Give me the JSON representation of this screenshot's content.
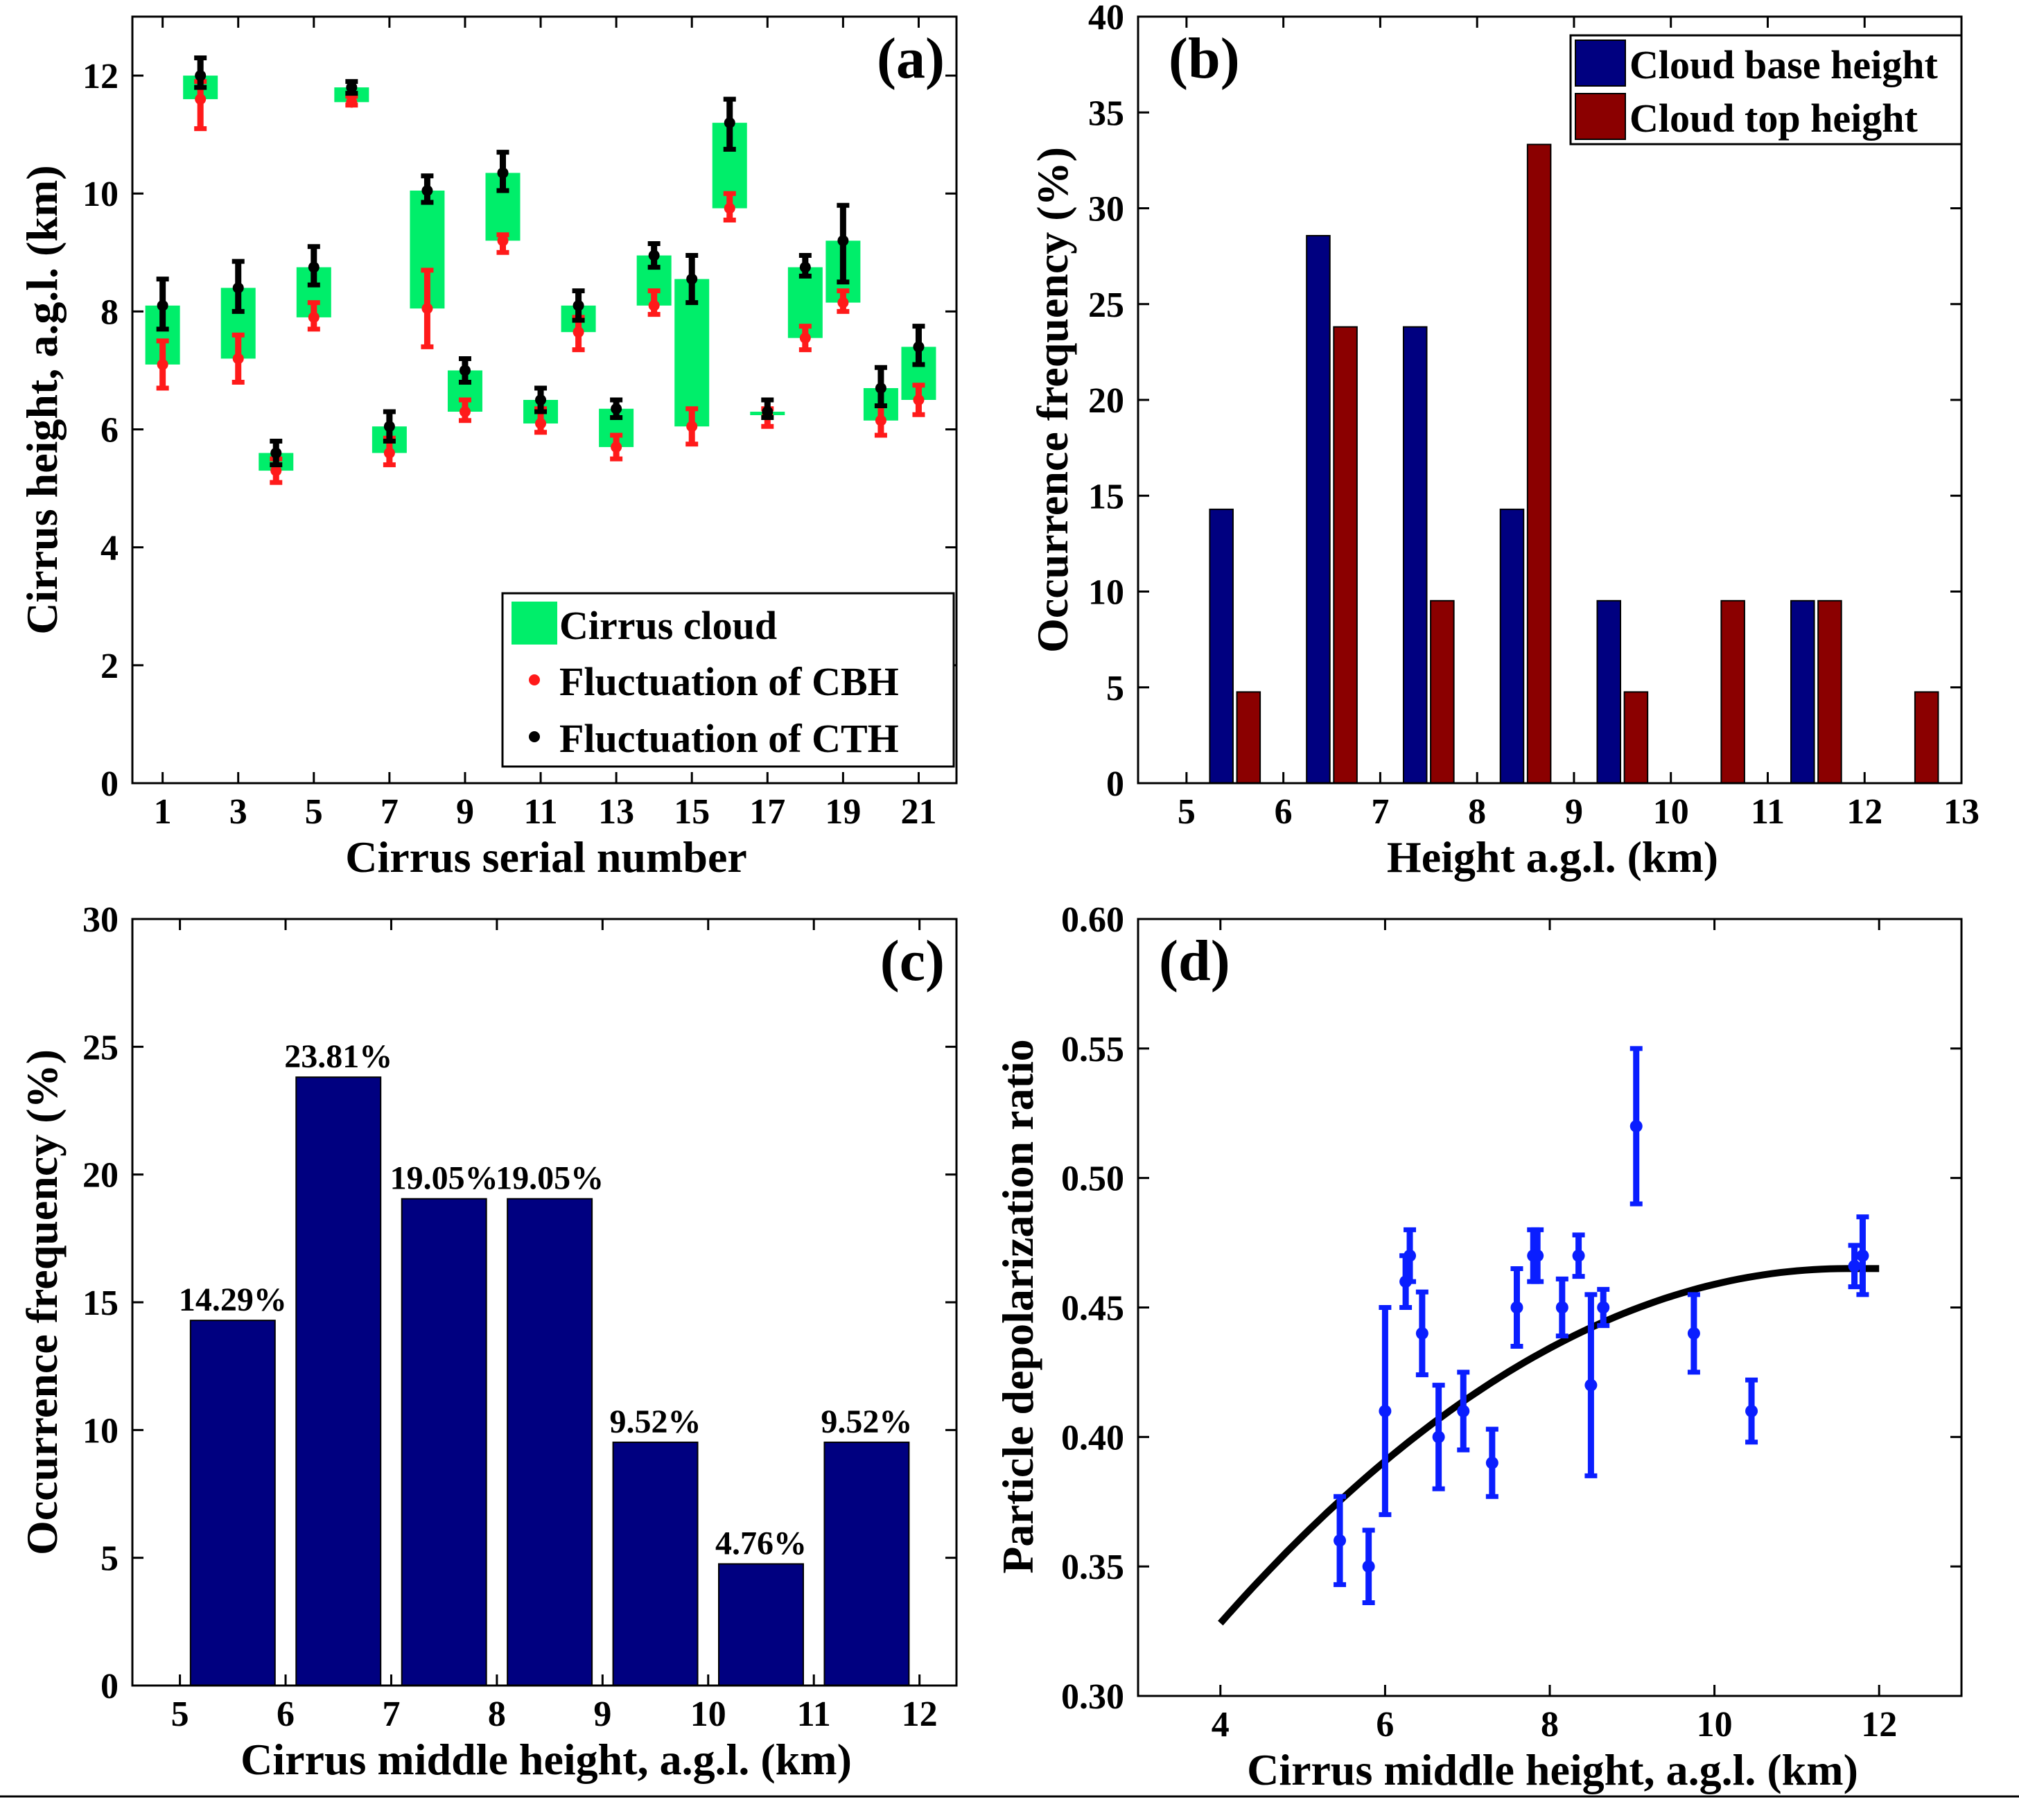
{
  "colors": {
    "cirrus": "#00ee6a",
    "cbh": "#ff1a1a",
    "cth": "#000000",
    "base": "#000080",
    "top": "#8b0000",
    "scatter": "#0a1eff",
    "fit": "#000000"
  },
  "chart_data": [
    {
      "panel": "(a)",
      "type": "range",
      "xlabel": "Cirrus serial number",
      "ylabel": "Cirrus height, a.g.l. (km)",
      "xlim": [
        0.2,
        22
      ],
      "ylim": [
        0,
        13
      ],
      "xticks": [
        1,
        3,
        5,
        7,
        9,
        11,
        13,
        15,
        17,
        19,
        21
      ],
      "yticks": [
        0,
        2,
        4,
        6,
        8,
        10,
        12
      ],
      "legend": [
        "Cirrus cloud",
        "Fluctuation of CBH",
        "Fluctuation of CTH"
      ],
      "legend_position": "bottom-right",
      "clouds": [
        {
          "n": 1,
          "cbh": 7.1,
          "cth": 8.1,
          "cbh_err": [
            6.7,
            7.5
          ],
          "cth_err": [
            7.7,
            8.55
          ]
        },
        {
          "n": 2,
          "cbh": 11.6,
          "cth": 12.0,
          "cbh_err": [
            11.1,
            11.9
          ],
          "cth_err": [
            11.8,
            12.3
          ]
        },
        {
          "n": 3,
          "cbh": 7.2,
          "cth": 8.4,
          "cbh_err": [
            6.8,
            7.6
          ],
          "cth_err": [
            8.0,
            8.85
          ]
        },
        {
          "n": 4,
          "cbh": 5.3,
          "cth": 5.6,
          "cbh_err": [
            5.1,
            5.5
          ],
          "cth_err": [
            5.4,
            5.8
          ]
        },
        {
          "n": 5,
          "cbh": 7.9,
          "cth": 8.75,
          "cbh_err": [
            7.7,
            8.15
          ],
          "cth_err": [
            8.45,
            9.1
          ]
        },
        {
          "n": 6,
          "cbh": 11.55,
          "cth": 11.8,
          "cbh_err": [
            11.5,
            11.65
          ],
          "cth_err": [
            11.7,
            11.9
          ]
        },
        {
          "n": 7,
          "cbh": 5.6,
          "cth": 6.05,
          "cbh_err": [
            5.4,
            5.85
          ],
          "cth_err": [
            5.8,
            6.3
          ]
        },
        {
          "n": 8,
          "cbh": 8.05,
          "cth": 10.05,
          "cbh_err": [
            7.4,
            8.7
          ],
          "cth_err": [
            9.85,
            10.3
          ]
        },
        {
          "n": 9,
          "cbh": 6.3,
          "cth": 7.0,
          "cbh_err": [
            6.15,
            6.5
          ],
          "cth_err": [
            6.8,
            7.2
          ]
        },
        {
          "n": 10,
          "cbh": 9.2,
          "cth": 10.35,
          "cbh_err": [
            9.0,
            9.3
          ],
          "cth_err": [
            10.05,
            10.7
          ]
        },
        {
          "n": 11,
          "cbh": 6.1,
          "cth": 6.5,
          "cbh_err": [
            5.95,
            6.35
          ],
          "cth_err": [
            6.3,
            6.7
          ]
        },
        {
          "n": 12,
          "cbh": 7.65,
          "cth": 8.1,
          "cbh_err": [
            7.35,
            7.9
          ],
          "cth_err": [
            7.85,
            8.35
          ]
        },
        {
          "n": 13,
          "cbh": 5.7,
          "cth": 6.35,
          "cbh_err": [
            5.5,
            5.9
          ],
          "cth_err": [
            6.2,
            6.5
          ]
        },
        {
          "n": 14,
          "cbh": 8.1,
          "cth": 8.95,
          "cbh_err": [
            7.95,
            8.35
          ],
          "cth_err": [
            8.75,
            9.15
          ]
        },
        {
          "n": 15,
          "cbh": 6.05,
          "cth": 8.55,
          "cbh_err": [
            5.75,
            6.35
          ],
          "cth_err": [
            8.15,
            8.95
          ]
        },
        {
          "n": 16,
          "cbh": 9.75,
          "cth": 11.2,
          "cbh_err": [
            9.55,
            10.0
          ],
          "cth_err": [
            10.75,
            11.6
          ]
        },
        {
          "n": 17,
          "cbh": 6.25,
          "cth": 6.3,
          "cbh_err": [
            6.05,
            6.35
          ],
          "cth_err": [
            6.2,
            6.5
          ]
        },
        {
          "n": 18,
          "cbh": 7.55,
          "cth": 8.75,
          "cbh_err": [
            7.35,
            7.75
          ],
          "cth_err": [
            8.6,
            8.95
          ]
        },
        {
          "n": 19,
          "cbh": 8.15,
          "cth": 9.2,
          "cbh_err": [
            8.0,
            8.35
          ],
          "cth_err": [
            8.5,
            9.8
          ]
        },
        {
          "n": 20,
          "cbh": 6.15,
          "cth": 6.7,
          "cbh_err": [
            5.9,
            6.4
          ],
          "cth_err": [
            6.4,
            7.05
          ]
        },
        {
          "n": 21,
          "cbh": 6.5,
          "cth": 7.4,
          "cbh_err": [
            6.25,
            6.75
          ],
          "cth_err": [
            7.1,
            7.75
          ]
        }
      ]
    },
    {
      "panel": "(b)",
      "type": "bar",
      "xlabel": "Height a.g.l. (km)",
      "ylabel": "Occurrence frequency (%)",
      "xlim": [
        4.5,
        13
      ],
      "ylim": [
        0,
        40
      ],
      "xticks": [
        5,
        6,
        7,
        8,
        9,
        10,
        11,
        12,
        13
      ],
      "yticks": [
        0,
        5,
        10,
        15,
        20,
        25,
        30,
        35,
        40
      ],
      "legend_position": "top-right",
      "bin_centers": [
        5.5,
        6.5,
        7.5,
        8.5,
        9.5,
        10.5,
        11.5,
        12.5
      ],
      "series": [
        {
          "name": "Cloud base height",
          "values": [
            14.29,
            28.57,
            23.81,
            14.29,
            9.52,
            0,
            9.52,
            0
          ]
        },
        {
          "name": "Cloud top height",
          "values": [
            4.76,
            23.81,
            9.52,
            33.33,
            4.76,
            9.52,
            9.52,
            4.76
          ]
        }
      ]
    },
    {
      "panel": "(c)",
      "type": "bar",
      "xlabel": "Cirrus middle height, a.g.l. (km)",
      "ylabel": "Occurrence frequency (%)",
      "xlim": [
        4.55,
        12.35
      ],
      "ylim": [
        0,
        30
      ],
      "xticks": [
        5,
        6,
        7,
        8,
        9,
        10,
        11,
        12
      ],
      "yticks": [
        0,
        5,
        10,
        15,
        20,
        25,
        30
      ],
      "bin_centers": [
        5.5,
        6.5,
        7.5,
        8.5,
        9.5,
        10.5,
        11.5
      ],
      "values": [
        14.29,
        23.81,
        19.05,
        19.05,
        9.52,
        4.76,
        9.52
      ],
      "labels": [
        "14.29%",
        "23.81%",
        "19.05%",
        "19.05%",
        "9.52%",
        "4.76%",
        "9.52%"
      ]
    },
    {
      "panel": "(d)",
      "type": "scatter",
      "xlabel": "Cirrus middle height, a.g.l. (km)",
      "ylabel": "Particle depolarization ratio",
      "xlim": [
        3,
        13
      ],
      "ylim": [
        0.3,
        0.6
      ],
      "xticks": [
        4,
        6,
        8,
        10,
        12
      ],
      "yticks": [
        0.3,
        0.35,
        0.4,
        0.45,
        0.5,
        0.55,
        0.6
      ],
      "ytick_labels": [
        "0.30",
        "0.35",
        "0.40",
        "0.45",
        "0.50",
        "0.55",
        "0.60"
      ],
      "points": [
        {
          "x": 5.45,
          "y": 0.36,
          "err": 0.017
        },
        {
          "x": 5.8,
          "y": 0.35,
          "err": 0.014
        },
        {
          "x": 6.0,
          "y": 0.41,
          "err": 0.04
        },
        {
          "x": 6.25,
          "y": 0.46,
          "err": 0.01
        },
        {
          "x": 6.3,
          "y": 0.47,
          "err": 0.01
        },
        {
          "x": 6.45,
          "y": 0.44,
          "err": 0.016
        },
        {
          "x": 6.65,
          "y": 0.4,
          "err": 0.02
        },
        {
          "x": 6.95,
          "y": 0.41,
          "err": 0.015
        },
        {
          "x": 7.3,
          "y": 0.39,
          "err": 0.013
        },
        {
          "x": 7.6,
          "y": 0.45,
          "err": 0.015
        },
        {
          "x": 7.8,
          "y": 0.47,
          "err": 0.01
        },
        {
          "x": 7.85,
          "y": 0.47,
          "err": 0.01
        },
        {
          "x": 8.15,
          "y": 0.45,
          "err": 0.011
        },
        {
          "x": 8.35,
          "y": 0.47,
          "err": 0.008
        },
        {
          "x": 8.5,
          "y": 0.42,
          "err": 0.035
        },
        {
          "x": 8.65,
          "y": 0.45,
          "err": 0.007
        },
        {
          "x": 9.05,
          "y": 0.52,
          "err": 0.03
        },
        {
          "x": 9.75,
          "y": 0.44,
          "err": 0.015
        },
        {
          "x": 10.45,
          "y": 0.41,
          "err": 0.012
        },
        {
          "x": 11.7,
          "y": 0.466,
          "err": 0.008
        },
        {
          "x": 11.8,
          "y": 0.47,
          "err": 0.015
        }
      ],
      "fit": {
        "x_range": [
          4,
          12
        ],
        "peak_x": 11.6,
        "peak_y": 0.465,
        "curvature": -0.00237
      }
    }
  ]
}
